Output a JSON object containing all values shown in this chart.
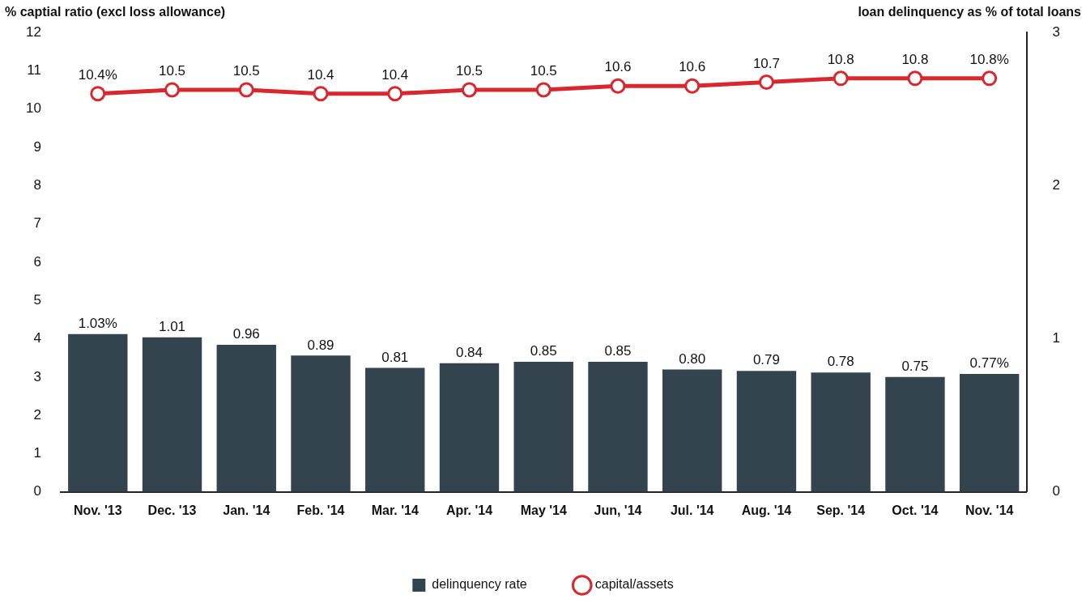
{
  "chart_data": {
    "type": "bar",
    "ylabel": "% captial ratio (excl loss allowance)",
    "y2label": "loan delinquency as % of total loans",
    "categories": [
      "Nov. '13",
      "Dec. '13",
      "Jan. '14",
      "Feb. '14",
      "Mar. '14",
      "Apr. '14",
      "May '14",
      "Jun, '14",
      "Jul. '14",
      "Aug. '14",
      "Sep. '14",
      "Oct. '14",
      "Nov. '14"
    ],
    "series": [
      {
        "name": "delinquency rate",
        "axis": "y2",
        "color": "#34444e",
        "values": [
          1.03,
          1.01,
          0.96,
          0.89,
          0.81,
          0.84,
          0.85,
          0.85,
          0.8,
          0.79,
          0.78,
          0.75,
          0.77
        ],
        "value_labels": [
          "1.03%",
          "1.01",
          "0.96",
          "0.89",
          "0.81",
          "0.84",
          "0.85",
          "0.85",
          "0.80",
          "0.79",
          "0.78",
          "0.75",
          "0.77%"
        ]
      },
      {
        "name": "capital/assets",
        "type": "line",
        "axis": "y",
        "color": "#d7282f",
        "marker": "circle",
        "values": [
          10.4,
          10.5,
          10.5,
          10.4,
          10.4,
          10.5,
          10.5,
          10.6,
          10.6,
          10.7,
          10.8,
          10.8,
          10.8
        ],
        "value_labels": [
          "10.4%",
          "10.5",
          "10.5",
          "10.4",
          "10.4",
          "10.5",
          "10.5",
          "10.6",
          "10.6",
          "10.7",
          "10.8",
          "10.8",
          "10.8%"
        ]
      }
    ],
    "ylim": [
      0,
      12
    ],
    "yticks": [
      0,
      1,
      2,
      3,
      4,
      5,
      6,
      7,
      8,
      9,
      10,
      11,
      12
    ],
    "y2lim": [
      0,
      3
    ],
    "y2ticks": [
      0,
      1,
      2,
      3
    ],
    "grid": false,
    "legend": "bottom"
  }
}
